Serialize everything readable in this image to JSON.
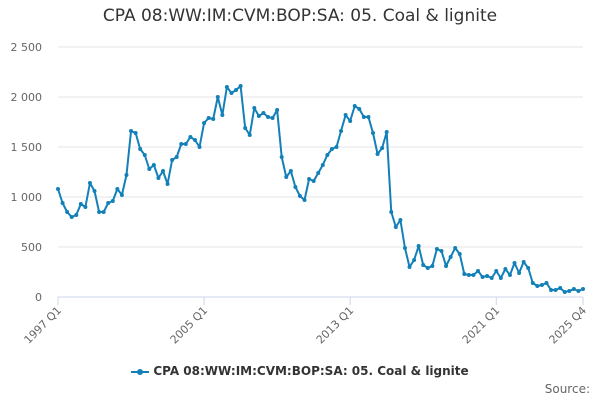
{
  "title": "CPA 08:WW:IM:CVM:BOP:SA: 05. Coal & lignite",
  "source_label": "Source:",
  "colors": {
    "series": "#1380b8",
    "grid": "#e6e6e6",
    "axis": "#ccd6eb",
    "text": "#666666"
  },
  "chart_data": {
    "type": "line",
    "title": "CPA 08:WW:IM:CVM:BOP:SA: 05. Coal & lignite",
    "xlabel": "",
    "ylabel": "",
    "ylim": [
      0,
      2500
    ],
    "yticks": [
      0,
      500,
      1000,
      1500,
      2000,
      2500
    ],
    "ytick_labels": [
      "0",
      "500",
      "1 000",
      "1 500",
      "2 000",
      "2 500"
    ],
    "xticks": [
      "1997 Q1",
      "2005 Q1",
      "2013 Q1",
      "2021 Q1",
      "2025 Q4"
    ],
    "grid": true,
    "legend_position": "bottom",
    "categories_start": "1997 Q1",
    "categories_end": "2025 Q4",
    "series": [
      {
        "name": "CPA 08:WW:IM:CVM:BOP:SA: 05. Coal & lignite",
        "values": [
          1080,
          940,
          850,
          800,
          820,
          930,
          900,
          1140,
          1060,
          850,
          850,
          940,
          960,
          1080,
          1020,
          1220,
          1660,
          1640,
          1480,
          1420,
          1280,
          1320,
          1190,
          1260,
          1130,
          1370,
          1400,
          1530,
          1530,
          1600,
          1570,
          1500,
          1740,
          1790,
          1780,
          2000,
          1820,
          2100,
          2040,
          2070,
          2110,
          1690,
          1620,
          1890,
          1810,
          1840,
          1800,
          1790,
          1870,
          1400,
          1200,
          1260,
          1100,
          1010,
          970,
          1180,
          1160,
          1240,
          1320,
          1420,
          1480,
          1500,
          1660,
          1820,
          1760,
          1910,
          1880,
          1800,
          1800,
          1640,
          1430,
          1490,
          1650,
          850,
          700,
          770,
          490,
          300,
          370,
          510,
          320,
          290,
          310,
          480,
          460,
          310,
          400,
          490,
          430,
          230,
          220,
          220,
          260,
          200,
          210,
          190,
          260,
          190,
          280,
          220,
          340,
          240,
          350,
          290,
          140,
          110,
          120,
          140,
          70,
          70,
          90,
          50,
          60,
          80,
          60,
          80
        ]
      }
    ]
  }
}
